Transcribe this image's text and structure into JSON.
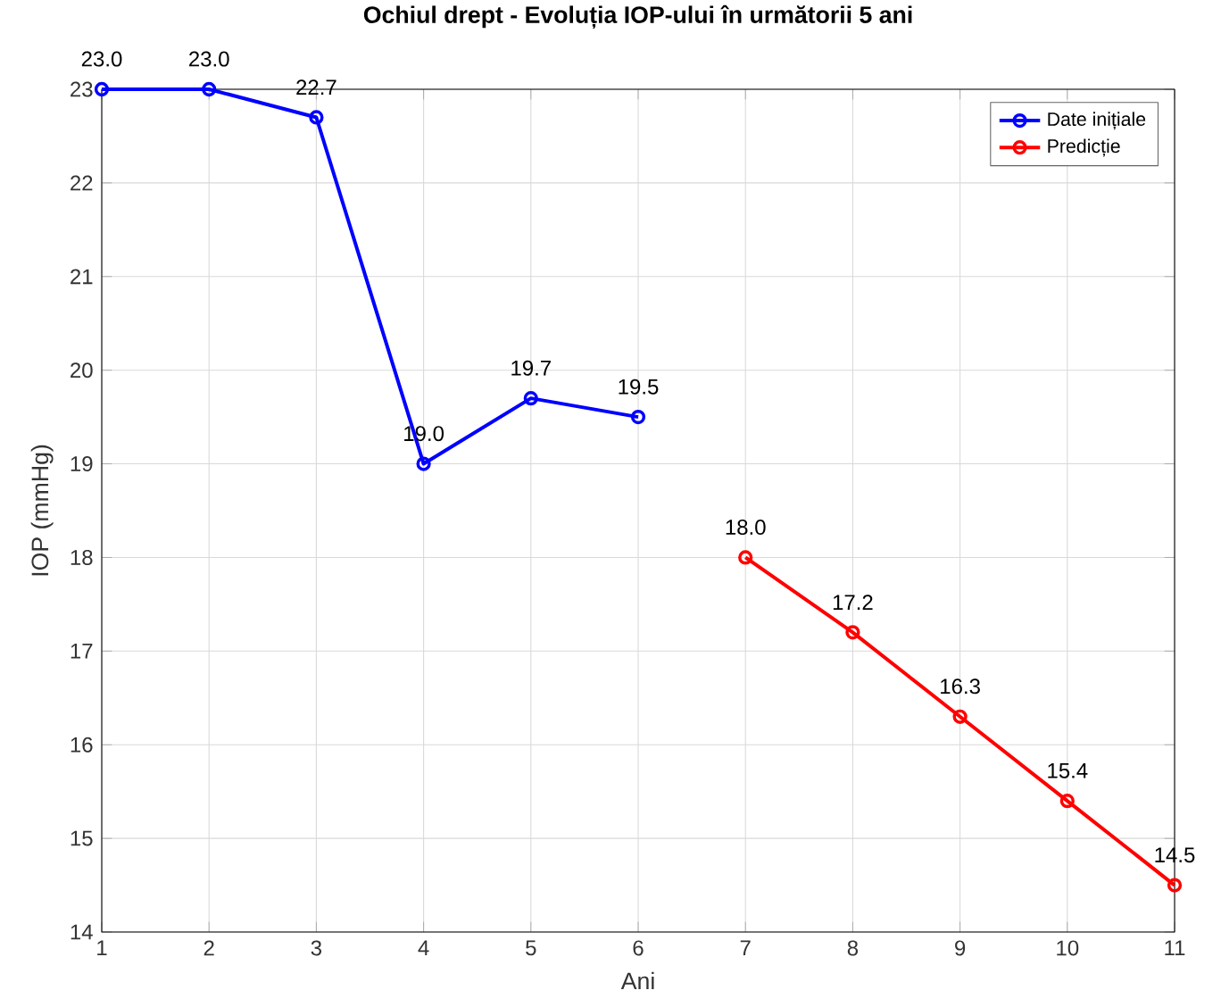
{
  "chart_data": {
    "type": "line",
    "title": "Ochiul drept - Evoluția IOP-ului în următorii 5 ani",
    "xlabel": "Ani",
    "ylabel": "IOP (mmHg)",
    "series": [
      {
        "name": "Date inițiale",
        "color": "#0000ff",
        "x": [
          1,
          2,
          3,
          4,
          5,
          6
        ],
        "values": [
          23.0,
          23.0,
          22.7,
          19.0,
          19.7,
          19.5
        ],
        "value_labels": [
          "23.0",
          "23.0",
          "22.7",
          "19.0",
          "19.7",
          "19.5"
        ]
      },
      {
        "name": "Predicție",
        "color": "#ff0000",
        "x": [
          7,
          8,
          9,
          10,
          11
        ],
        "values": [
          18.0,
          17.2,
          16.3,
          15.4,
          14.5
        ],
        "value_labels": [
          "18.0",
          "17.2",
          "16.3",
          "15.4",
          "14.5"
        ]
      }
    ],
    "xlim": [
      1,
      11
    ],
    "xticks": [
      1,
      2,
      3,
      4,
      5,
      6,
      7,
      8,
      9,
      10,
      11
    ],
    "ylim": [
      14,
      23
    ],
    "yticks": [
      14,
      15,
      16,
      17,
      18,
      19,
      20,
      21,
      22,
      23
    ],
    "grid": true,
    "legend": "top right",
    "marker": "circle",
    "line_style": "solid"
  }
}
